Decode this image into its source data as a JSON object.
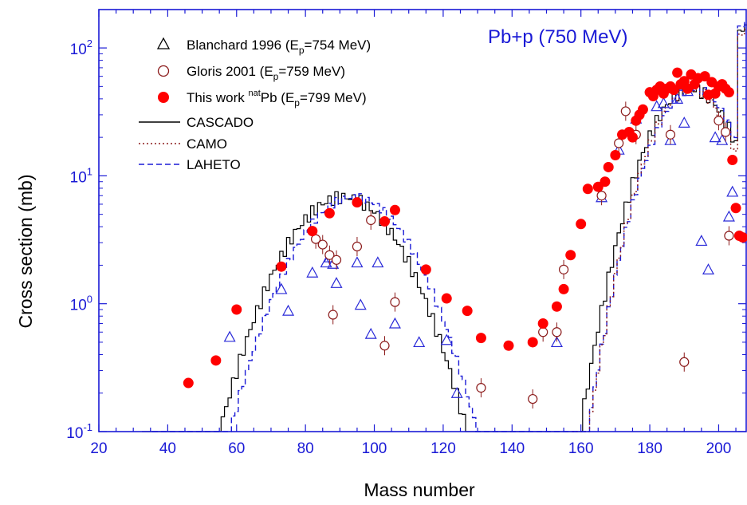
{
  "chart_data": {
    "type": "scatter",
    "title": "",
    "annotation": "Pb+p (750 MeV)",
    "xlabel": "Mass number",
    "ylabel": "Cross section (mb)",
    "xlim": [
      20,
      208
    ],
    "ylim": [
      0.1,
      200
    ],
    "y_scale": "log",
    "x_ticks": [
      20,
      40,
      60,
      80,
      100,
      120,
      140,
      160,
      180,
      200
    ],
    "x_tick_labels": [
      "20",
      "40",
      "60",
      "80",
      "100",
      "120",
      "140",
      "160",
      "180",
      "200"
    ],
    "y_ticks": [
      0.1,
      1,
      10,
      100
    ],
    "y_tick_base": "10",
    "y_tick_exponents": [
      "-1",
      "0",
      "1",
      "2"
    ],
    "grid": false,
    "legend_position": "top-left",
    "colors": {
      "axis": "#1a1ad6",
      "blanchard": "#2a2ad8",
      "gloris": "#8b1a1a",
      "this_work": "#ff0000",
      "cascado": "#000000",
      "camo": "#8b1a1a",
      "laheto": "#1a1ad6"
    },
    "legend": [
      {
        "prefix": "Blanchard 1996 (E",
        "sub": "p",
        "sup": "",
        "suffix": "=754 MeV)"
      },
      {
        "prefix": "Gloris 2001 (E",
        "sub": "p",
        "sup": "",
        "suffix": "=759 MeV)"
      },
      {
        "prefix": "This work ",
        "sup": "nat",
        "mid": "Pb (E",
        "sub": "p",
        "suffix": "=799 MeV)"
      },
      {
        "prefix": "CASCADO"
      },
      {
        "prefix": "CAMO"
      },
      {
        "prefix": "LAHETO"
      }
    ],
    "series": [
      {
        "name": "Blanchard 1996 (Ep=754 MeV)",
        "marker": "open-triangle",
        "x": [
          58,
          73,
          75,
          82,
          86,
          87,
          88,
          89,
          95,
          96,
          99,
          101,
          106,
          113,
          121,
          124,
          153,
          166,
          171,
          176,
          182,
          184,
          186,
          188,
          190,
          191,
          195,
          197,
          199,
          201,
          203,
          204
        ],
        "y": [
          0.55,
          1.3,
          0.88,
          1.75,
          2.1,
          2.3,
          2.05,
          1.45,
          2.1,
          0.98,
          0.58,
          2.1,
          0.7,
          0.5,
          0.52,
          0.2,
          0.5,
          6.8,
          16,
          28,
          35,
          37,
          19,
          40,
          26,
          46,
          3.1,
          1.85,
          20,
          19,
          4.8,
          7.5
        ]
      },
      {
        "name": "Gloris 2001 (Ep=759 MeV)",
        "marker": "open-circle",
        "x": [
          83,
          85,
          87,
          88,
          89,
          95,
          99,
          103,
          106,
          131,
          146,
          149,
          153,
          155,
          166,
          171,
          173,
          176,
          186,
          200,
          202,
          203,
          190
        ],
        "y": [
          3.2,
          2.9,
          2.4,
          0.82,
          2.2,
          2.8,
          4.5,
          0.47,
          1.03,
          0.22,
          0.18,
          0.6,
          0.6,
          1.85,
          7.0,
          18,
          32,
          21,
          21,
          27,
          22,
          3.4,
          0.35
        ]
      },
      {
        "name": "This work natPb (Ep=799 MeV)",
        "marker": "filled-circle",
        "x": [
          46,
          54,
          60,
          73,
          82,
          87,
          95,
          103,
          106,
          115,
          121,
          127,
          131,
          139,
          146,
          149,
          153,
          155,
          157,
          160,
          162,
          165,
          167,
          168,
          170,
          172,
          174,
          175,
          176,
          177,
          178,
          180,
          181,
          182,
          183,
          184,
          185,
          186,
          187,
          188,
          189,
          190,
          191,
          192,
          193,
          194,
          196,
          197,
          198,
          199,
          200,
          201,
          202,
          203,
          204,
          205,
          206,
          207
        ],
        "y": [
          0.24,
          0.36,
          0.9,
          1.95,
          3.7,
          5.1,
          6.2,
          4.4,
          5.4,
          1.85,
          1.1,
          0.88,
          0.54,
          0.47,
          0.5,
          0.7,
          0.95,
          1.3,
          2.4,
          4.2,
          7.9,
          8.2,
          9.0,
          11.7,
          14.5,
          21,
          22,
          20,
          27,
          30,
          33,
          45,
          42,
          47,
          50,
          44,
          48,
          50,
          47,
          64,
          52,
          55,
          48,
          62,
          52,
          58,
          60,
          43,
          54,
          44,
          50,
          52,
          48,
          45,
          13.3,
          5.6,
          3.4,
          3.3
        ]
      }
    ]
  }
}
